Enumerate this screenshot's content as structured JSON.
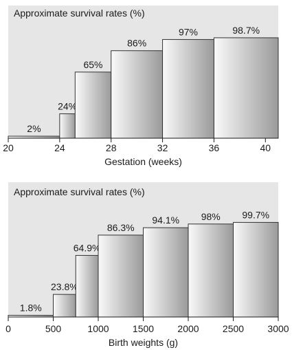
{
  "chart_data": [
    {
      "type": "bar",
      "title": "Approximate survival rates (%)",
      "xlabel": "Gestation (weeks)",
      "ylabel": "",
      "x_ticks": [
        20,
        24,
        28,
        32,
        36,
        40
      ],
      "xlim": [
        20,
        41
      ],
      "ylim": [
        0,
        100
      ],
      "bins": [
        {
          "from": 20,
          "to": 24,
          "value": 2,
          "label": "2%"
        },
        {
          "from": 24,
          "to": 25.2,
          "value": 24,
          "label": "24%"
        },
        {
          "from": 25.2,
          "to": 28,
          "value": 65,
          "label": "65%"
        },
        {
          "from": 28,
          "to": 32,
          "value": 86,
          "label": "86%"
        },
        {
          "from": 32,
          "to": 36,
          "value": 97,
          "label": "97%"
        },
        {
          "from": 36,
          "to": 41,
          "value": 98.7,
          "label": "98.7%"
        }
      ]
    },
    {
      "type": "bar",
      "title": "Approximate survival rates (%)",
      "xlabel": "Birth weights (g)",
      "ylabel": "",
      "x_ticks": [
        0,
        500,
        1000,
        1500,
        2000,
        2500,
        3000
      ],
      "xlim": [
        0,
        3000
      ],
      "ylim": [
        0,
        100
      ],
      "bins": [
        {
          "from": 0,
          "to": 500,
          "value": 1.8,
          "label": "1.8%"
        },
        {
          "from": 500,
          "to": 750,
          "value": 23.8,
          "label": "23.8%"
        },
        {
          "from": 750,
          "to": 1000,
          "value": 64.9,
          "label": "64.9%"
        },
        {
          "from": 1000,
          "to": 1500,
          "value": 86.3,
          "label": "86.3%"
        },
        {
          "from": 1500,
          "to": 2000,
          "value": 94.1,
          "label": "94.1%"
        },
        {
          "from": 2000,
          "to": 2500,
          "value": 98,
          "label": "98%"
        },
        {
          "from": 2500,
          "to": 3000,
          "value": 99.7,
          "label": "99.7%"
        }
      ]
    }
  ],
  "colors": {
    "plot_background": "#e6e6e6",
    "bar_light": "#fafafa",
    "bar_dark": "#9a9a9a"
  }
}
